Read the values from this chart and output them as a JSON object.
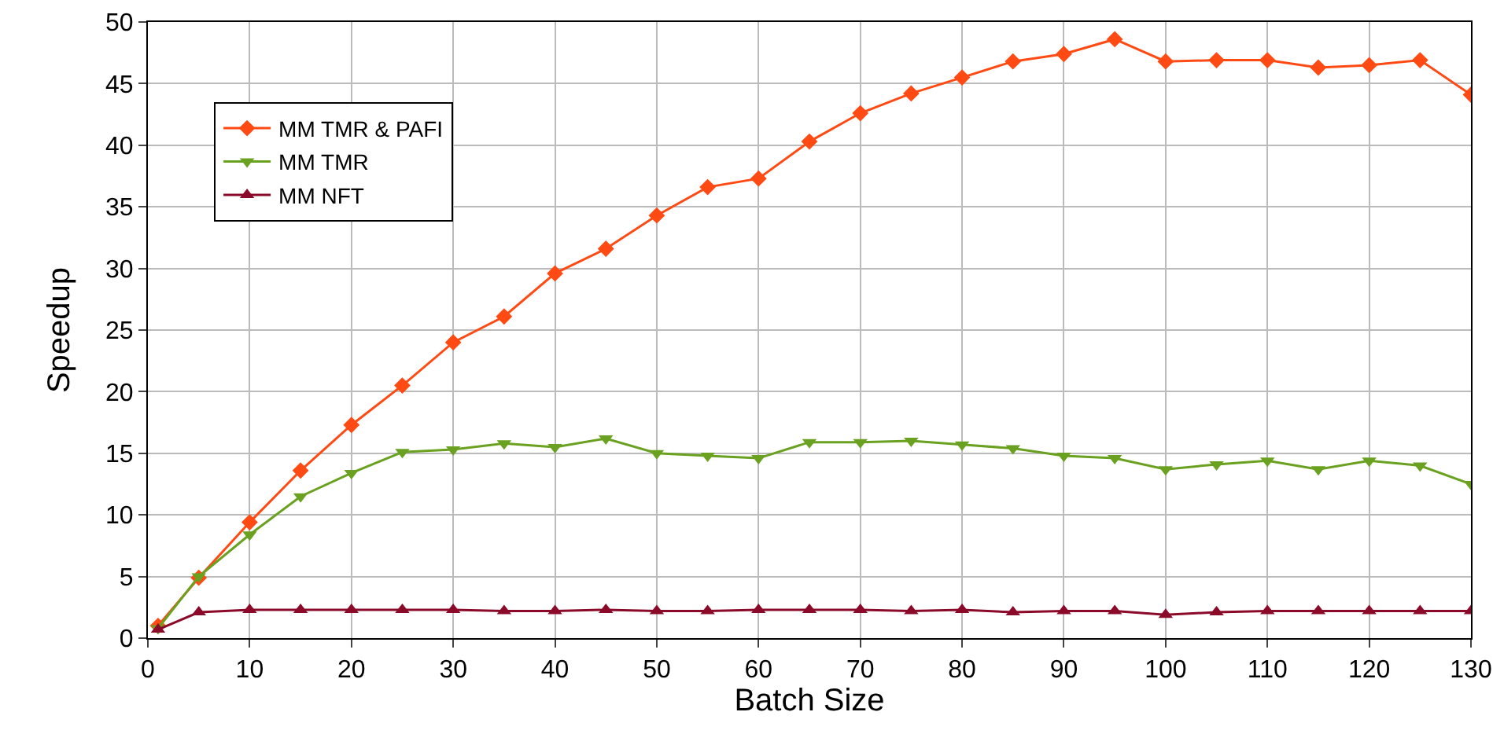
{
  "chart_data": {
    "type": "line",
    "xlabel": "Batch Size",
    "ylabel": "Speedup",
    "x": [
      1,
      5,
      10,
      15,
      20,
      25,
      30,
      35,
      40,
      45,
      50,
      55,
      60,
      65,
      70,
      75,
      80,
      85,
      90,
      95,
      100,
      105,
      110,
      115,
      120,
      125,
      130
    ],
    "xlim": [
      0,
      130
    ],
    "xticks": [
      0,
      10,
      20,
      30,
      40,
      50,
      60,
      70,
      80,
      90,
      100,
      110,
      120,
      130
    ],
    "ylim": [
      0,
      50
    ],
    "yticks": [
      0,
      5,
      10,
      15,
      20,
      25,
      30,
      35,
      40,
      45,
      50
    ],
    "grid": true,
    "legend": "top left",
    "line_style": "solid",
    "series": [
      {
        "name": "MM TMR & PAFI",
        "color": "#ff4a14",
        "marker": "diamond",
        "values": [
          1.0,
          4.9,
          9.4,
          13.6,
          17.3,
          20.5,
          24.0,
          26.1,
          29.6,
          31.6,
          34.3,
          36.6,
          37.3,
          40.3,
          42.6,
          44.2,
          45.5,
          46.8,
          47.4,
          48.6,
          46.8,
          46.9,
          46.9,
          46.3,
          46.5,
          46.9,
          44.1
        ]
      },
      {
        "name": "MM TMR",
        "color": "#6aa121",
        "marker": "triangle-down",
        "values": [
          0.8,
          5.0,
          8.4,
          11.5,
          13.4,
          15.1,
          15.3,
          15.8,
          15.5,
          16.2,
          15.0,
          14.8,
          14.6,
          15.9,
          15.9,
          16.0,
          15.7,
          15.4,
          14.8,
          14.6,
          13.7,
          14.1,
          14.4,
          13.7,
          14.4,
          14.0,
          12.5
        ]
      },
      {
        "name": "MM NFT",
        "color": "#8b0a2a",
        "marker": "triangle",
        "values": [
          0.7,
          2.1,
          2.3,
          2.3,
          2.3,
          2.3,
          2.3,
          2.2,
          2.2,
          2.3,
          2.2,
          2.2,
          2.3,
          2.3,
          2.3,
          2.2,
          2.3,
          2.1,
          2.2,
          2.2,
          1.9,
          2.1,
          2.2,
          2.2,
          2.2,
          2.2,
          2.2
        ]
      }
    ]
  }
}
